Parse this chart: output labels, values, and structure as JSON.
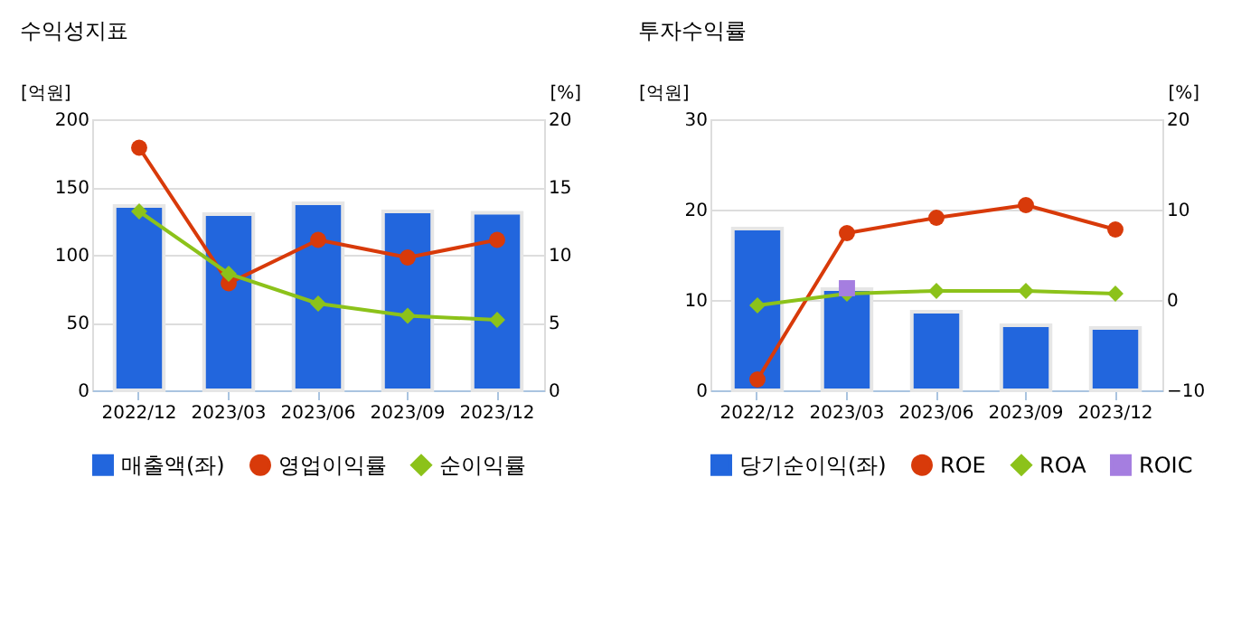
{
  "chart_data": [
    {
      "type": "bar",
      "title": "수익성지표",
      "ylabel": "[억원]",
      "y2label": "[%]",
      "categories": [
        "2022/12",
        "2023/03",
        "2023/06",
        "2023/09",
        "2023/12"
      ],
      "ylim": [
        0,
        200
      ],
      "yticks": [
        0,
        50,
        100,
        150,
        200
      ],
      "y2lim": [
        0,
        20
      ],
      "y2ticks": [
        0,
        5,
        10,
        15,
        20
      ],
      "grid": "y",
      "legend": "bottom",
      "series": [
        {
          "name": "매출액(좌)",
          "color": "#2266dd",
          "values": [
            136,
            130,
            138,
            132,
            131
          ]
        },
        {
          "name": "영업이익률",
          "type": "line",
          "axis": "y2",
          "marker": "circle",
          "color": "#d83a0a",
          "values": [
            17.9,
            7.9,
            11.1,
            9.8,
            11.1
          ]
        },
        {
          "name": "순이익률",
          "type": "line",
          "axis": "y2",
          "marker": "diamond",
          "color": "#8cc21a",
          "values": [
            13.2,
            8.6,
            6.4,
            5.5,
            5.2
          ]
        }
      ]
    },
    {
      "type": "bar",
      "title": "투자수익률",
      "ylabel": "[억원]",
      "y2label": "[%]",
      "categories": [
        "2022/12",
        "2023/03",
        "2023/06",
        "2023/09",
        "2023/12"
      ],
      "ylim": [
        0,
        30
      ],
      "yticks": [
        0,
        10,
        20,
        30
      ],
      "y2lim": [
        -10,
        20
      ],
      "y2ticks": [
        -10,
        0,
        10,
        20
      ],
      "grid": "y",
      "legend": "bottom",
      "series": [
        {
          "name": "당기순이익(좌)",
          "color": "#2266dd",
          "values": [
            17.9,
            11.2,
            8.7,
            7.2,
            6.9
          ]
        },
        {
          "name": "ROE",
          "type": "line",
          "axis": "y2",
          "marker": "circle",
          "color": "#d83a0a",
          "values": [
            -8.8,
            7.4,
            9.1,
            10.5,
            7.8
          ]
        },
        {
          "name": "ROA",
          "type": "line",
          "axis": "y2",
          "marker": "diamond",
          "color": "#8cc21a",
          "values": [
            -0.6,
            0.7,
            1.0,
            1.0,
            0.7
          ]
        },
        {
          "name": "ROIC",
          "type": "line",
          "axis": "y2",
          "marker": "square",
          "color": "#a57ee0",
          "values": [
            null,
            1.3,
            null,
            null,
            null
          ]
        }
      ]
    }
  ]
}
